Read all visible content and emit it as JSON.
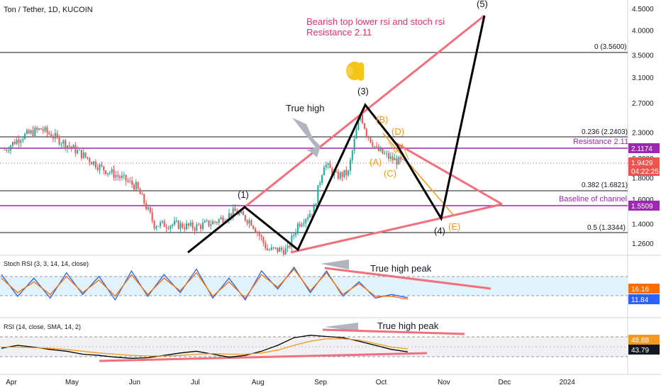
{
  "header": {
    "title": "Ton / Tether, 1D, KUCOIN",
    "stoch_label": "Stoch RSI (3, 3, 14, 14, close)",
    "rsi_label": "RSI (14, close, SMA, 14, 2)"
  },
  "annotations": {
    "bearish_line1": "Bearish top lower rsi and stoch rsi",
    "bearish_line2": "Resistance 2.11",
    "true_high": "True high",
    "true_high_peak_stoch": "True high peak",
    "true_high_peak_rsi": "True high peak",
    "wave_1": "(1)",
    "wave_3": "(3)",
    "wave_4": "(4)",
    "wave_5": "(5)",
    "wave_A": "(A)",
    "wave_B": "(B)",
    "wave_C": "(C)",
    "wave_D": "(D)",
    "wave_E": "(E)",
    "resistance_label": "Resistance 2.11",
    "baseline_label": "Baseline of channel"
  },
  "fib_levels": {
    "fib_0": "0 (3.5600)",
    "fib_0236": "0.236 (2.2403)",
    "fib_0382": "0.382 (1.6821)",
    "fib_05": "0.5 (1.3344)"
  },
  "price_boxes": {
    "resistance": "2.1174",
    "last": "1.9429",
    "countdown": "04:22:25",
    "baseline": "1.5509"
  },
  "stoch_boxes": {
    "k": "16.16",
    "d": "11.84"
  },
  "rsi_boxes": {
    "sma": "48.88",
    "rsi": "43.79"
  },
  "colors": {
    "up": "#26a69a",
    "down": "#ef5350",
    "pink_line": "#f0707e",
    "purple": "#9c27b0",
    "orange": "#f29a1d",
    "black": "#000000",
    "stoch_k": "#2962ff",
    "stoch_d": "#ff6d00",
    "rsi": "#000000",
    "rsi_sma": "#f29a1d"
  },
  "chart_data": [
    {
      "type": "candlestick",
      "title": "Ton / Tether, 1D, KUCOIN",
      "y_ticks": [
        1.26,
        1.4,
        1.6,
        1.8,
        2.0,
        2.3,
        2.7,
        3.1,
        3.5,
        4.0,
        4.5
      ],
      "y_tick_labels": [
        "1.2600",
        "1.4000",
        "1.6000",
        "1.8000",
        "2.0000",
        "2.3000",
        "2.7000",
        "3.1000",
        "3.5000",
        "4.0000",
        "4.5000"
      ],
      "x_tick_labels": [
        "Apr",
        "May",
        "Jun",
        "Jul",
        "Aug",
        "Sep",
        "Oct",
        "Nov",
        "Dec",
        "2024"
      ],
      "price_path": [
        [
          "2023-03-28",
          2.1
        ],
        [
          "2023-04-05",
          2.25
        ],
        [
          "2023-04-15",
          2.35
        ],
        [
          "2023-04-25",
          2.2
        ],
        [
          "2023-05-05",
          2.05
        ],
        [
          "2023-05-15",
          1.9
        ],
        [
          "2023-05-25",
          1.8
        ],
        [
          "2023-06-01",
          1.72
        ],
        [
          "2023-06-10",
          1.4
        ],
        [
          "2023-06-20",
          1.4
        ],
        [
          "2023-06-30",
          1.38
        ],
        [
          "2023-07-10",
          1.42
        ],
        [
          "2023-07-20",
          1.5
        ],
        [
          "2023-07-28",
          1.42
        ],
        [
          "2023-08-05",
          1.22
        ],
        [
          "2023-08-15",
          1.22
        ],
        [
          "2023-08-20",
          1.4
        ],
        [
          "2023-08-28",
          1.52
        ],
        [
          "2023-09-02",
          1.95
        ],
        [
          "2023-09-08",
          1.82
        ],
        [
          "2023-09-14",
          1.85
        ],
        [
          "2023-09-20",
          2.55
        ],
        [
          "2023-09-23",
          2.3
        ],
        [
          "2023-09-28",
          2.1
        ],
        [
          "2023-10-05",
          2.0
        ],
        [
          "2023-10-12",
          1.95
        ]
      ],
      "levels": {
        "fib_0": 3.56,
        "fib_0236": 2.2403,
        "resistance": 2.1174,
        "last": 1.9429,
        "fib_0382": 1.6821,
        "baseline": 1.5509,
        "fib_05": 1.3344
      },
      "elliott_path": [
        [
          "(1)",
          "2023-07-25",
          1.53
        ],
        [
          "",
          "2023-08-22",
          1.21
        ],
        [
          "(3)",
          "2023-09-21",
          2.65
        ],
        [
          "(4)",
          "2023-10-28",
          1.47
        ],
        [
          "(5)",
          "2023-11-18",
          4.35
        ]
      ]
    },
    {
      "type": "line",
      "title": "Stoch RSI (3, 3, 14, 14, close)",
      "y_ticks": [
        100.0,
        16.16,
        11.84
      ],
      "band": [
        20,
        80
      ],
      "series": [
        {
          "name": "K",
          "values": [
            80,
            20,
            70,
            15,
            85,
            25,
            75,
            10,
            90,
            20,
            80,
            30,
            95,
            15,
            70,
            10,
            90,
            40,
            100,
            30,
            90,
            20,
            60,
            15,
            25,
            16
          ]
        },
        {
          "name": "D",
          "values": [
            70,
            30,
            60,
            25,
            75,
            30,
            65,
            20,
            80,
            25,
            70,
            35,
            85,
            20,
            60,
            15,
            80,
            45,
            95,
            35,
            85,
            25,
            55,
            20,
            20,
            12
          ]
        }
      ]
    },
    {
      "type": "line",
      "title": "RSI (14, close, SMA, 14, 2)",
      "y_ticks": [
        80.0,
        48.88,
        43.79
      ],
      "band": [
        30,
        70
      ],
      "series": [
        {
          "name": "RSI",
          "values": [
            50,
            55,
            52,
            48,
            45,
            40,
            38,
            35,
            33,
            34,
            38,
            42,
            45,
            40,
            35,
            38,
            45,
            55,
            68,
            72,
            70,
            68,
            62,
            55,
            48,
            44
          ]
        },
        {
          "name": "SMA",
          "values": [
            52,
            52,
            51,
            50,
            48,
            45,
            42,
            40,
            38,
            37,
            37,
            38,
            40,
            41,
            40,
            40,
            42,
            47,
            55,
            62,
            66,
            66,
            64,
            58,
            52,
            49
          ]
        }
      ]
    }
  ]
}
